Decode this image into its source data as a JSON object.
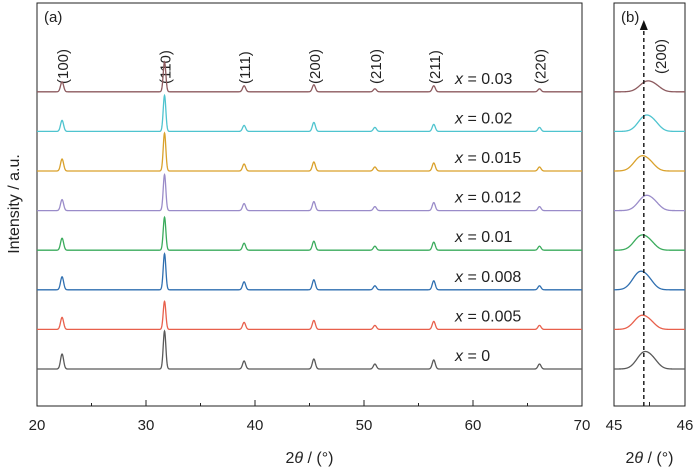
{
  "chart_data": [
    {
      "panel": "(a)",
      "type": "line",
      "xlabel_prefix": "2",
      "xlabel_symbol": "θ",
      "xlabel_unit": " / (°)",
      "ylabel": "Intensity / a.u.",
      "xlim": [
        20,
        70
      ],
      "x_ticks": [
        20,
        30,
        40,
        50,
        60,
        70
      ],
      "peak_labels": [
        {
          "text": "(100)",
          "x": 22.3
        },
        {
          "text": "(110)",
          "x": 31.7
        },
        {
          "text": "(111)",
          "x": 39.0
        },
        {
          "text": "(200)",
          "x": 45.4
        },
        {
          "text": "(210)",
          "x": 51.0
        },
        {
          "text": "(211)",
          "x": 56.4
        },
        {
          "text": "(220)",
          "x": 66.1
        }
      ],
      "series": [
        {
          "name": "x = 0",
          "x_symbol": "x",
          "x_value": "= 0",
          "color": "#595959",
          "offset": 0,
          "peaks": [
            {
              "x": 22.3,
              "h": 15
            },
            {
              "x": 31.7,
              "h": 38
            },
            {
              "x": 39.0,
              "h": 8
            },
            {
              "x": 45.4,
              "h": 10
            },
            {
              "x": 51.0,
              "h": 5
            },
            {
              "x": 56.4,
              "h": 9
            },
            {
              "x": 66.1,
              "h": 5
            }
          ]
        },
        {
          "name": "x = 0.005",
          "x_symbol": "x",
          "x_value": "= 0.005",
          "color": "#e8604c",
          "offset": 1,
          "peaks": [
            {
              "x": 22.3,
              "h": 12
            },
            {
              "x": 31.7,
              "h": 28
            },
            {
              "x": 39.0,
              "h": 7
            },
            {
              "x": 45.4,
              "h": 9
            },
            {
              "x": 51.0,
              "h": 4
            },
            {
              "x": 56.4,
              "h": 8
            },
            {
              "x": 66.1,
              "h": 4
            }
          ]
        },
        {
          "name": "x = 0.008",
          "x_symbol": "x",
          "x_value": "= 0.008",
          "color": "#2f6fb0",
          "offset": 2,
          "peaks": [
            {
              "x": 22.3,
              "h": 13
            },
            {
              "x": 31.7,
              "h": 36
            },
            {
              "x": 39.0,
              "h": 8
            },
            {
              "x": 45.4,
              "h": 10
            },
            {
              "x": 51.0,
              "h": 4
            },
            {
              "x": 56.4,
              "h": 9
            },
            {
              "x": 66.1,
              "h": 4
            }
          ]
        },
        {
          "name": "x = 0.01",
          "x_symbol": "x",
          "x_value": "= 0.01",
          "color": "#3aab5c",
          "offset": 3,
          "peaks": [
            {
              "x": 22.3,
              "h": 12
            },
            {
              "x": 31.7,
              "h": 33
            },
            {
              "x": 39.0,
              "h": 7
            },
            {
              "x": 45.4,
              "h": 9
            },
            {
              "x": 51.0,
              "h": 4
            },
            {
              "x": 56.4,
              "h": 8
            },
            {
              "x": 66.1,
              "h": 4
            }
          ]
        },
        {
          "name": "x = 0.012",
          "x_symbol": "x",
          "x_value": "= 0.012",
          "color": "#9a8cc9",
          "offset": 4,
          "peaks": [
            {
              "x": 22.3,
              "h": 11
            },
            {
              "x": 31.7,
              "h": 36
            },
            {
              "x": 39.0,
              "h": 7
            },
            {
              "x": 45.4,
              "h": 9
            },
            {
              "x": 51.0,
              "h": 4
            },
            {
              "x": 56.4,
              "h": 8
            },
            {
              "x": 66.1,
              "h": 4
            }
          ]
        },
        {
          "name": "x = 0.015",
          "x_symbol": "x",
          "x_value": "= 0.015",
          "color": "#d9a12b",
          "offset": 5,
          "peaks": [
            {
              "x": 22.3,
              "h": 12
            },
            {
              "x": 31.7,
              "h": 38
            },
            {
              "x": 39.0,
              "h": 7
            },
            {
              "x": 45.4,
              "h": 9
            },
            {
              "x": 51.0,
              "h": 4
            },
            {
              "x": 56.4,
              "h": 8
            },
            {
              "x": 66.1,
              "h": 4
            }
          ]
        },
        {
          "name": "x = 0.02",
          "x_symbol": "x",
          "x_value": "= 0.02",
          "color": "#4fc4cf",
          "offset": 6,
          "peaks": [
            {
              "x": 22.3,
              "h": 11
            },
            {
              "x": 31.7,
              "h": 36
            },
            {
              "x": 39.0,
              "h": 6
            },
            {
              "x": 45.4,
              "h": 9
            },
            {
              "x": 51.0,
              "h": 4
            },
            {
              "x": 56.4,
              "h": 7
            },
            {
              "x": 66.1,
              "h": 4
            }
          ]
        },
        {
          "name": "x = 0.03",
          "x_symbol": "x",
          "x_value": "= 0.03",
          "color": "#8c5a5e",
          "offset": 7,
          "peaks": [
            {
              "x": 22.3,
              "h": 10
            },
            {
              "x": 31.7,
              "h": 30
            },
            {
              "x": 39.0,
              "h": 6
            },
            {
              "x": 45.4,
              "h": 7
            },
            {
              "x": 51.0,
              "h": 3
            },
            {
              "x": 56.4,
              "h": 6
            },
            {
              "x": 66.1,
              "h": 3
            }
          ]
        }
      ]
    },
    {
      "panel": "(b)",
      "type": "line",
      "xlabel_prefix": "2",
      "xlabel_symbol": "θ",
      "xlabel_unit": " / (°)",
      "xlim": [
        45,
        46
      ],
      "x_ticks": [
        45,
        46
      ],
      "peak_labels": [
        {
          "text": "(200)",
          "x": 45.42
        }
      ],
      "reference_line_x": 45.42,
      "series": [
        {
          "color": "#595959",
          "offset": 0,
          "center": 45.42,
          "h": 16
        },
        {
          "color": "#e8604c",
          "offset": 1,
          "center": 45.38,
          "h": 13
        },
        {
          "color": "#2f6fb0",
          "offset": 2,
          "center": 45.36,
          "h": 17
        },
        {
          "color": "#3aab5c",
          "offset": 3,
          "center": 45.38,
          "h": 14
        },
        {
          "color": "#9a8cc9",
          "offset": 4,
          "center": 45.44,
          "h": 14
        },
        {
          "color": "#d9a12b",
          "offset": 5,
          "center": 45.38,
          "h": 14
        },
        {
          "color": "#4fc4cf",
          "offset": 6,
          "center": 45.44,
          "h": 15
        },
        {
          "color": "#8c5a5e",
          "offset": 7,
          "center": 45.46,
          "h": 10
        }
      ]
    }
  ]
}
